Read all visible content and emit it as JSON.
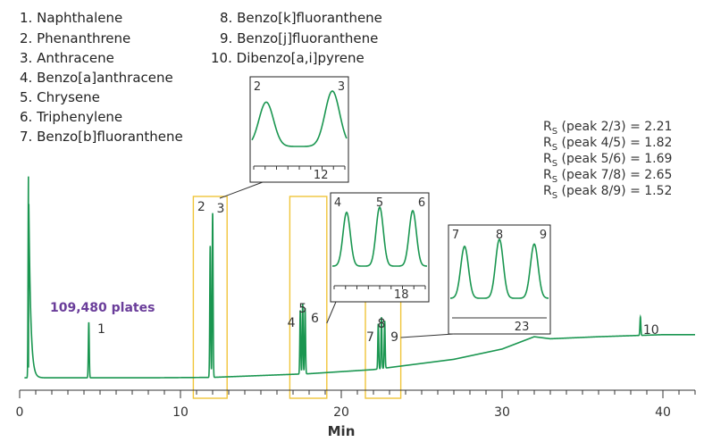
{
  "legend": [
    {
      "num": "1.",
      "name": "Naphthalene"
    },
    {
      "num": "2.",
      "name": "Phenanthrene"
    },
    {
      "num": "3.",
      "name": "Anthracene"
    },
    {
      "num": "4.",
      "name": "Benzo[a]anthracene"
    },
    {
      "num": "5.",
      "name": "Chrysene"
    },
    {
      "num": "6.",
      "name": "Triphenylene"
    },
    {
      "num": "7.",
      "name": "Benzo[b]fluoranthene"
    },
    {
      "num": "8.",
      "name": "Benzo[k]fluoranthene"
    },
    {
      "num": "9.",
      "name": "Benzo[j]fluoranthene"
    },
    {
      "num": "10.",
      "name": "Dibenzo[a,i]pyrene"
    }
  ],
  "resolution": [
    {
      "prefix": "R",
      "sub": "S",
      "label": "(peak 2/3) = 2.21"
    },
    {
      "prefix": "R",
      "sub": "S",
      "label": "(peak 4/5) = 1.82"
    },
    {
      "prefix": "R",
      "sub": "S",
      "label": "(peak 5/6) = 1.69"
    },
    {
      "prefix": "R",
      "sub": "S",
      "label": "(peak 7/8) = 2.65"
    },
    {
      "prefix": "R",
      "sub": "S",
      "label": "(peak 8/9) = 1.52"
    }
  ],
  "plates_label": "109,480 plates",
  "colors": {
    "trace": "#1a9650",
    "highlight": "#f0c53a",
    "plates": "#6a3d9a",
    "axis": "#333333"
  },
  "chart_data": {
    "type": "line",
    "xlabel": "Min",
    "ylabel": "",
    "xlim": [
      0,
      42
    ],
    "ylim": [
      0,
      100
    ],
    "xticks": [
      0,
      10,
      20,
      30,
      40
    ],
    "xtick_labels": [
      "0",
      "10",
      "20",
      "30",
      "40"
    ],
    "grid": false,
    "baseline": [
      [
        0,
        3
      ],
      [
        8,
        3
      ],
      [
        12,
        3.2
      ],
      [
        18,
        5
      ],
      [
        22,
        7
      ],
      [
        27,
        12
      ],
      [
        30,
        17
      ],
      [
        32,
        23
      ],
      [
        33,
        22
      ],
      [
        36,
        23
      ],
      [
        40,
        24
      ],
      [
        42,
        24
      ]
    ],
    "peaks": [
      {
        "label": "1",
        "rt": 4.3,
        "height": 27
      },
      {
        "label": "2",
        "rt": 11.85,
        "height": 64
      },
      {
        "label": "3",
        "rt": 12.0,
        "height": 80
      },
      {
        "label": "4",
        "rt": 17.45,
        "height": 31
      },
      {
        "label": "5",
        "rt": 17.6,
        "height": 34
      },
      {
        "label": "6",
        "rt": 17.75,
        "height": 32
      },
      {
        "label": "7",
        "rt": 22.3,
        "height": 22
      },
      {
        "label": "8",
        "rt": 22.5,
        "height": 25
      },
      {
        "label": "9",
        "rt": 22.7,
        "height": 23
      },
      {
        "label": "10",
        "rt": 38.6,
        "height": 9
      }
    ],
    "void_peak": {
      "rt": 0.55,
      "height": 100
    },
    "highlight_boxes": [
      {
        "x0": 10.8,
        "x1": 12.9,
        "peaks": "2/3"
      },
      {
        "x0": 16.8,
        "x1": 19.1,
        "peaks": "4/5/6"
      },
      {
        "x0": 21.5,
        "x1": 23.7,
        "peaks": "7/8/9"
      }
    ],
    "insets": [
      {
        "peaks": [
          "2",
          "3"
        ],
        "tick_label": "12"
      },
      {
        "peaks": [
          "4",
          "5",
          "6"
        ],
        "tick_label": "18"
      },
      {
        "peaks": [
          "7",
          "8",
          "9"
        ],
        "tick_label": "23"
      }
    ]
  }
}
